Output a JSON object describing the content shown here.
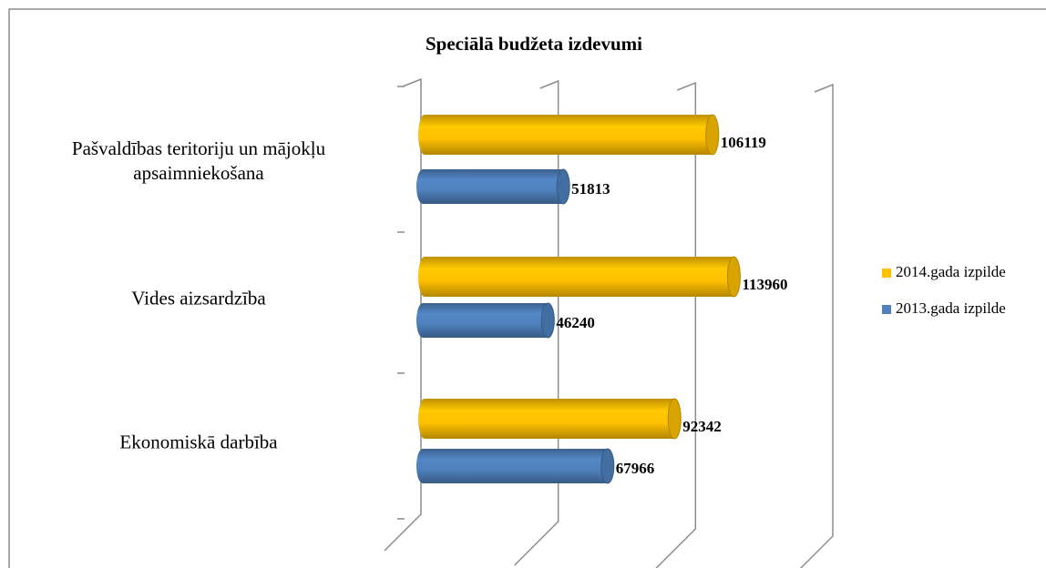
{
  "chart_data": {
    "type": "bar3d-horizontal",
    "title": "Speciālā budžeta izdevumi",
    "categories": [
      "Pašvaldības teritoriju un mājokļu apsaimniekošana",
      "Vides aizsardzība",
      "Ekonomiskā darbība"
    ],
    "series": [
      {
        "name": "2014.gada izpilde",
        "color": "#FFC000",
        "values": [
          106119,
          113960,
          92342
        ]
      },
      {
        "name": "2013.gada izpilde",
        "color": "#4F81BD",
        "values": [
          51813,
          46240,
          67966
        ]
      }
    ],
    "xlim": [
      0,
      150000
    ],
    "xticks": [
      0,
      50000,
      100000,
      150000
    ],
    "grid": true,
    "legend": "right"
  }
}
